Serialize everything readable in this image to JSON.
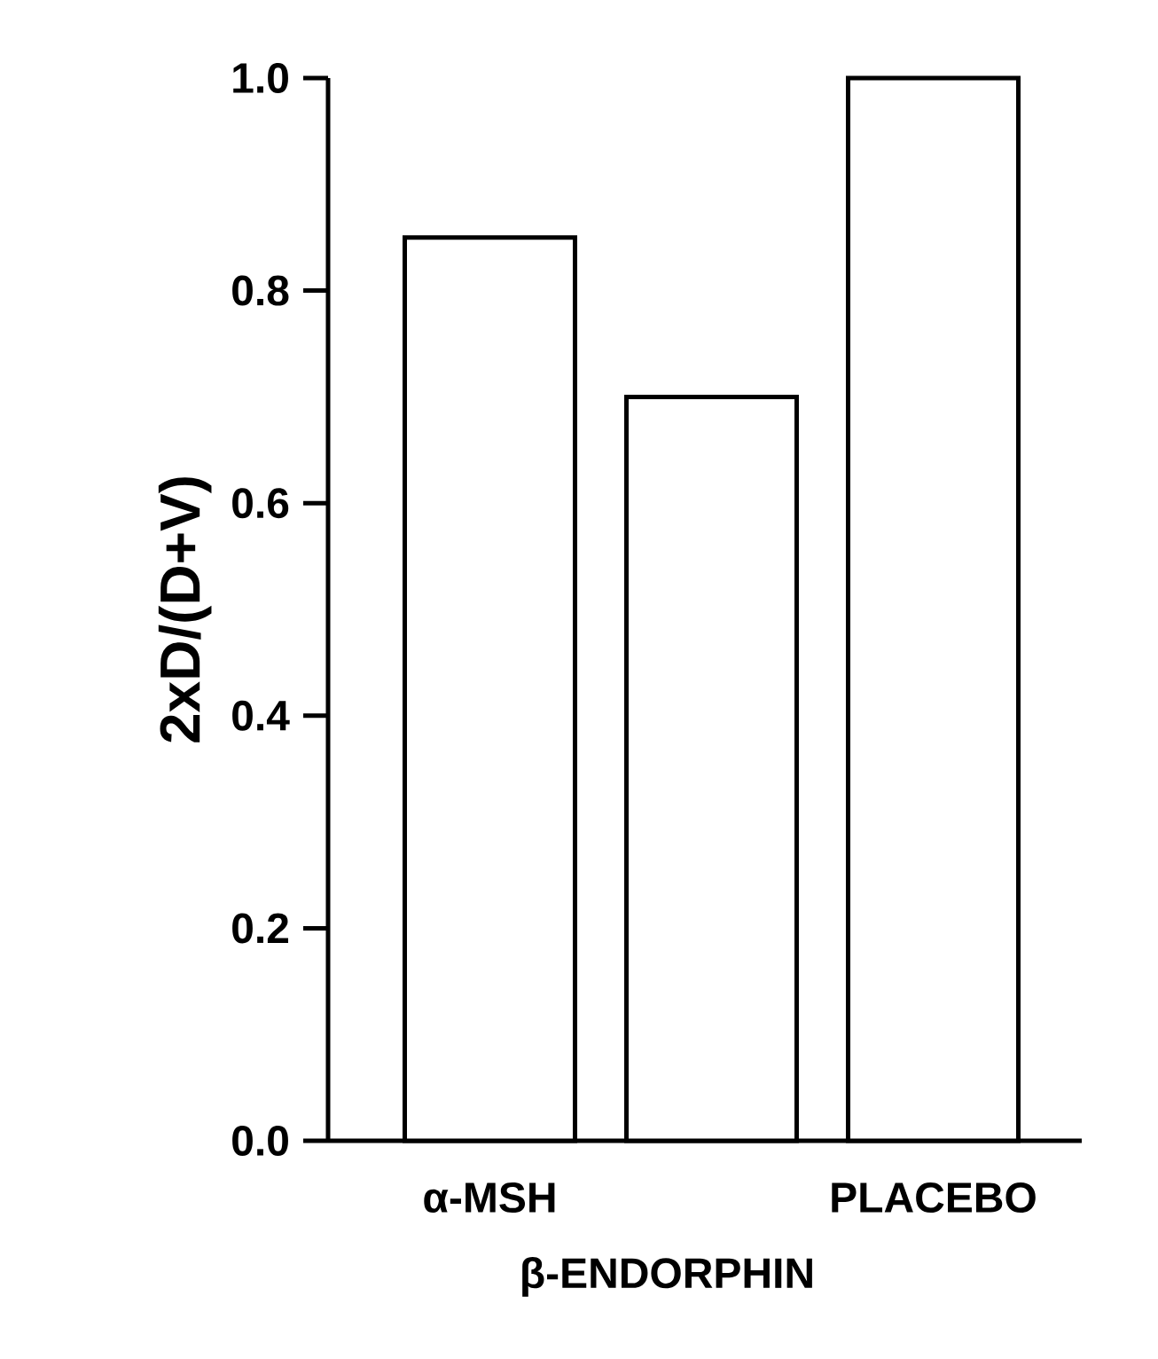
{
  "chart_data": {
    "type": "bar",
    "ylabel": "2xD/(D+V)",
    "xlabel": "β-ENDORPHIN",
    "categories": [
      "α-MSH",
      null,
      "PLACEBO"
    ],
    "values": [
      0.85,
      0.7,
      1.0
    ],
    "color": "#ffffff",
    "ylim": [
      0,
      1.0
    ],
    "yticks": [
      {
        "value": 0,
        "label": "0.0"
      },
      {
        "value": 0.2,
        "label": "0.2"
      },
      {
        "value": 0.4,
        "label": "0.4"
      },
      {
        "value": 0.6,
        "label": "0.6"
      },
      {
        "value": 0.8,
        "label": "0.8"
      },
      {
        "value": 1.0,
        "label": "1.0"
      }
    ],
    "grid": false
  }
}
